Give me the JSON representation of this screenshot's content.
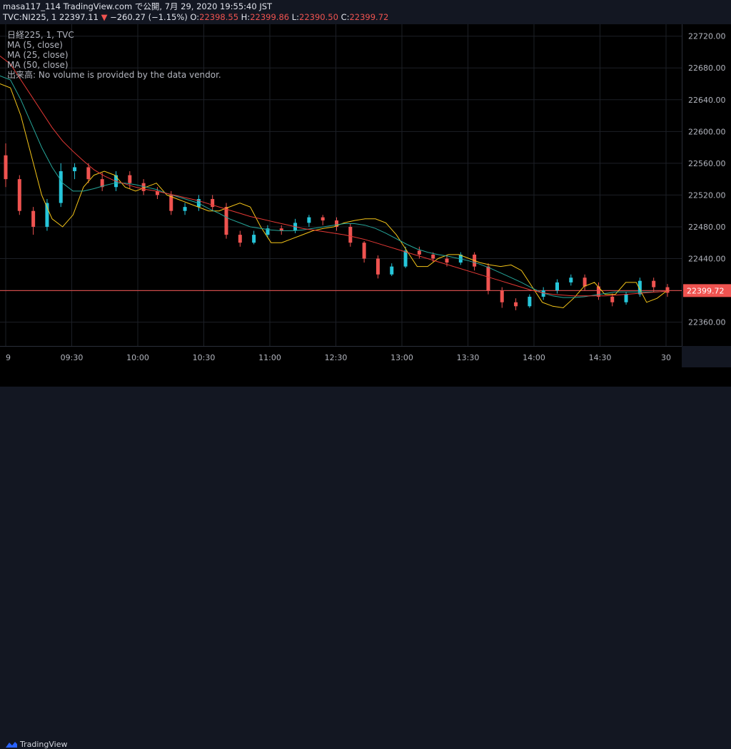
{
  "header": {
    "line1": "masa117_114 TradingView.com で公開, 7月 29, 2020 19:55:40 JST",
    "symbol": "TVC:NI225, 1",
    "last": "22397.11",
    "arrow": "▼",
    "change": "−260.27 (−1.15%)",
    "o_label": "O:",
    "o_val": "22398.55",
    "h_label": "H:",
    "h_val": "22399.86",
    "l_label": "L:",
    "l_val": "22390.50",
    "c_label": "C:",
    "c_val": "22399.72"
  },
  "legend": {
    "line1": "日経225, 1, TVC",
    "line2": "MA (5, close)",
    "line3": "MA (25, close)",
    "line4": "MA (50, close)",
    "line5": "出来高: No volume is provided by the data vendor."
  },
  "brand": {
    "name": "TradingView"
  },
  "colors": {
    "up": "#26c6da",
    "down": "#ef5350",
    "ma5": "#f5c518",
    "ma25": "#26a69a",
    "ma50": "#e53935",
    "price_line": "#ef5350",
    "grid": "#1c1f26"
  },
  "chart_data": {
    "type": "line",
    "title": "",
    "ylim": [
      22330,
      22735
    ],
    "yticks": [
      22360,
      22400,
      22440,
      22480,
      22520,
      22560,
      22600,
      22640,
      22680,
      22720
    ],
    "ytick_labels": [
      "22360.00",
      "22400.00",
      "22440.00",
      "22480.00",
      "22520.00",
      "22560.00",
      "22600.00",
      "22640.00",
      "22680.00",
      "22720.00"
    ],
    "xticks": [
      "9",
      "09:30",
      "10:00",
      "10:30",
      "11:00",
      "12:30",
      "13:00",
      "13:30",
      "14:00",
      "14:30",
      "30"
    ],
    "last_price": 22399.72,
    "last_price_label": "22399.72",
    "series": [
      {
        "name": "MA (5, close)",
        "values": [
          22660,
          22655,
          22620,
          22570,
          22520,
          22490,
          22480,
          22495,
          22530,
          22545,
          22550,
          22545,
          22530,
          22525,
          22530,
          22535,
          22520,
          22515,
          22510,
          22505,
          22500,
          22500,
          22505,
          22510,
          22505,
          22480,
          22460,
          22460,
          22465,
          22470,
          22475,
          22478,
          22480,
          22485,
          22488,
          22490,
          22490,
          22485,
          22470,
          22450,
          22430,
          22430,
          22440,
          22445,
          22445,
          22440,
          22435,
          22432,
          22430,
          22432,
          22425,
          22405,
          22385,
          22380,
          22378,
          22390,
          22405,
          22410,
          22395,
          22395,
          22410,
          22410,
          22385,
          22390,
          22400
        ]
      },
      {
        "name": "MA (25, close)",
        "values": [
          22670,
          22665,
          22640,
          22610,
          22580,
          22555,
          22535,
          22525,
          22525,
          22528,
          22532,
          22535,
          22535,
          22533,
          22530,
          22527,
          22522,
          22518,
          22514,
          22510,
          22503,
          22497,
          22490,
          22485,
          22480,
          22478,
          22476,
          22475,
          22475,
          22476,
          22478,
          22480,
          22482,
          22484,
          22484,
          22482,
          22478,
          22472,
          22465,
          22458,
          22452,
          22448,
          22445,
          22443,
          22440,
          22437,
          22433,
          22428,
          22422,
          22416,
          22410,
          22403,
          22397,
          22393,
          22391,
          22391,
          22392,
          22394,
          22396,
          22398,
          22398,
          22398,
          22398,
          22398,
          22399
        ]
      },
      {
        "name": "MA (50, close)",
        "values": [
          22695,
          22685,
          22665,
          22645,
          22625,
          22605,
          22588,
          22575,
          22563,
          22552,
          22544,
          22538,
          22534,
          22530,
          22527,
          22525,
          22522,
          22519,
          22516,
          22513,
          22509,
          22505,
          22501,
          22497,
          22493,
          22490,
          22487,
          22484,
          22481,
          22478,
          22476,
          22474,
          22472,
          22470,
          22467,
          22464,
          22460,
          22456,
          22452,
          22448,
          22444,
          22440,
          22436,
          22432,
          22428,
          22424,
          22420,
          22416,
          22412,
          22408,
          22404,
          22400,
          22397,
          22395,
          22394,
          22393,
          22393,
          22393,
          22393,
          22394,
          22395,
          22396,
          22397,
          22398,
          22399
        ]
      }
    ],
    "candles": [
      {
        "o": 22570,
        "c": 22540,
        "h": 22585,
        "l": 22530
      },
      {
        "o": 22540,
        "c": 22500,
        "h": 22545,
        "l": 22495
      },
      {
        "o": 22500,
        "c": 22480,
        "h": 22505,
        "l": 22470
      },
      {
        "o": 22480,
        "c": 22510,
        "h": 22515,
        "l": 22475
      },
      {
        "o": 22510,
        "c": 22550,
        "h": 22560,
        "l": 22505
      },
      {
        "o": 22550,
        "c": 22555,
        "h": 22560,
        "l": 22540
      },
      {
        "o": 22555,
        "c": 22540,
        "h": 22560,
        "l": 22535
      },
      {
        "o": 22540,
        "c": 22530,
        "h": 22548,
        "l": 22525
      },
      {
        "o": 22530,
        "c": 22545,
        "h": 22550,
        "l": 22525
      },
      {
        "o": 22545,
        "c": 22535,
        "h": 22550,
        "l": 22528
      },
      {
        "o": 22535,
        "c": 22525,
        "h": 22540,
        "l": 22520
      },
      {
        "o": 22525,
        "c": 22520,
        "h": 22530,
        "l": 22515
      },
      {
        "o": 22520,
        "c": 22500,
        "h": 22525,
        "l": 22495
      },
      {
        "o": 22500,
        "c": 22505,
        "h": 22510,
        "l": 22495
      },
      {
        "o": 22505,
        "c": 22515,
        "h": 22520,
        "l": 22500
      },
      {
        "o": 22515,
        "c": 22505,
        "h": 22520,
        "l": 22500
      },
      {
        "o": 22505,
        "c": 22470,
        "h": 22510,
        "l": 22465
      },
      {
        "o": 22470,
        "c": 22460,
        "h": 22475,
        "l": 22455
      },
      {
        "o": 22460,
        "c": 22470,
        "h": 22475,
        "l": 22458
      },
      {
        "o": 22470,
        "c": 22478,
        "h": 22482,
        "l": 22466
      },
      {
        "o": 22478,
        "c": 22475,
        "h": 22482,
        "l": 22470
      },
      {
        "o": 22475,
        "c": 22485,
        "h": 22490,
        "l": 22472
      },
      {
        "o": 22485,
        "c": 22492,
        "h": 22495,
        "l": 22480
      },
      {
        "o": 22492,
        "c": 22488,
        "h": 22495,
        "l": 22482
      },
      {
        "o": 22488,
        "c": 22480,
        "h": 22492,
        "l": 22475
      },
      {
        "o": 22480,
        "c": 22460,
        "h": 22484,
        "l": 22455
      },
      {
        "o": 22460,
        "c": 22440,
        "h": 22462,
        "l": 22435
      },
      {
        "o": 22440,
        "c": 22420,
        "h": 22444,
        "l": 22415
      },
      {
        "o": 22420,
        "c": 22430,
        "h": 22434,
        "l": 22418
      },
      {
        "o": 22430,
        "c": 22450,
        "h": 22455,
        "l": 22428
      },
      {
        "o": 22450,
        "c": 22445,
        "h": 22455,
        "l": 22440
      },
      {
        "o": 22445,
        "c": 22440,
        "h": 22448,
        "l": 22436
      },
      {
        "o": 22440,
        "c": 22435,
        "h": 22444,
        "l": 22430
      },
      {
        "o": 22435,
        "c": 22445,
        "h": 22448,
        "l": 22432
      },
      {
        "o": 22445,
        "c": 22430,
        "h": 22448,
        "l": 22425
      },
      {
        "o": 22430,
        "c": 22400,
        "h": 22434,
        "l": 22395
      },
      {
        "o": 22400,
        "c": 22385,
        "h": 22404,
        "l": 22378
      },
      {
        "o": 22385,
        "c": 22380,
        "h": 22390,
        "l": 22375
      },
      {
        "o": 22380,
        "c": 22392,
        "h": 22395,
        "l": 22378
      },
      {
        "o": 22392,
        "c": 22400,
        "h": 22404,
        "l": 22388
      },
      {
        "o": 22400,
        "c": 22410,
        "h": 22414,
        "l": 22396
      },
      {
        "o": 22410,
        "c": 22416,
        "h": 22420,
        "l": 22406
      },
      {
        "o": 22416,
        "c": 22405,
        "h": 22420,
        "l": 22400
      },
      {
        "o": 22405,
        "c": 22392,
        "h": 22410,
        "l": 22388
      },
      {
        "o": 22392,
        "c": 22385,
        "h": 22396,
        "l": 22380
      },
      {
        "o": 22385,
        "c": 22395,
        "h": 22398,
        "l": 22382
      },
      {
        "o": 22395,
        "c": 22412,
        "h": 22416,
        "l": 22392
      },
      {
        "o": 22412,
        "c": 22404,
        "h": 22416,
        "l": 22398
      },
      {
        "o": 22404,
        "c": 22397,
        "h": 22408,
        "l": 22392
      }
    ]
  }
}
